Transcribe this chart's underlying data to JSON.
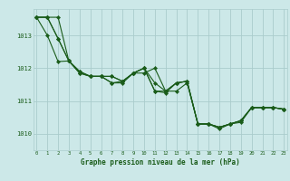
{
  "title": "Graphe pression niveau de la mer (hPa)",
  "background_color": "#cce8e8",
  "grid_color": "#aacccc",
  "line_color": "#1a5c1a",
  "x_min": 0,
  "x_max": 23,
  "y_min": 1009.5,
  "y_max": 1013.8,
  "y_ticks": [
    1010,
    1011,
    1012,
    1013
  ],
  "x_ticks": [
    0,
    1,
    2,
    3,
    4,
    5,
    6,
    7,
    8,
    9,
    10,
    11,
    12,
    13,
    14,
    15,
    16,
    17,
    18,
    19,
    20,
    21,
    22,
    23
  ],
  "series": [
    [
      1013.55,
      1013.55,
      1013.55,
      1012.22,
      1011.9,
      1011.75,
      1011.75,
      1011.75,
      1011.6,
      1011.85,
      1011.85,
      1012.0,
      1011.3,
      1011.3,
      1011.55,
      1010.3,
      1010.3,
      1010.2,
      1010.3,
      1010.4,
      1010.8,
      1010.8,
      1010.8,
      1010.75
    ],
    [
      1013.55,
      1013.55,
      1012.9,
      1012.22,
      1011.9,
      1011.75,
      1011.75,
      1011.75,
      1011.6,
      1011.85,
      1012.0,
      1011.55,
      1011.3,
      1011.55,
      1011.6,
      1010.3,
      1010.3,
      1010.15,
      1010.3,
      1010.35,
      1010.8,
      1010.8,
      1010.8,
      1010.75
    ],
    [
      1013.55,
      1013.55,
      1012.9,
      1012.22,
      1011.85,
      1011.75,
      1011.75,
      1011.55,
      1011.6,
      1011.85,
      1012.0,
      1011.3,
      1011.3,
      1011.55,
      1011.6,
      1010.3,
      1010.3,
      1010.2,
      1010.3,
      1010.4,
      1010.8,
      1010.8,
      1010.8,
      1010.75
    ],
    [
      1013.55,
      1013.0,
      1012.2,
      1012.22,
      1011.85,
      1011.75,
      1011.75,
      1011.55,
      1011.55,
      1011.85,
      1012.0,
      1011.3,
      1011.25,
      1011.55,
      1011.6,
      1010.3,
      1010.3,
      1010.2,
      1010.3,
      1010.4,
      1010.8,
      1010.8,
      1010.8,
      1010.75
    ]
  ]
}
